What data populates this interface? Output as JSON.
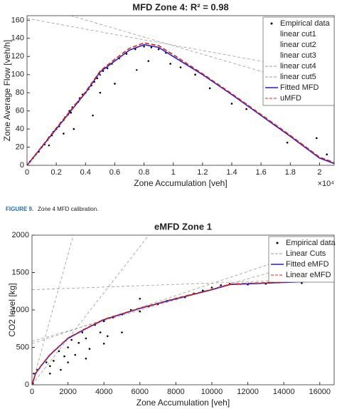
{
  "caption_label": "FIGURE 9.",
  "caption": "Zone 4 MFD calibration.",
  "chart_data": [
    {
      "type": "line",
      "title": "MFD Zone 4: R² = 0.98",
      "x_label": "Zone Accumulation [veh]",
      "y_label": "Zone Average Flow [veh/h]",
      "x_multiplier": "×10⁴",
      "xlim": [
        0,
        21000
      ],
      "ylim": [
        0,
        165
      ],
      "xticks": [
        0,
        {
          "value": 2000,
          "label": "0.2"
        },
        {
          "value": 4000,
          "label": "0.4"
        },
        {
          "value": 6000,
          "label": "0.6"
        },
        {
          "value": 8000,
          "label": "0.8"
        },
        {
          "value": 10000,
          "label": "1"
        },
        {
          "value": 12000,
          "label": "1.2"
        },
        {
          "value": 14000,
          "label": "1.4"
        },
        {
          "value": 16000,
          "label": "1.6"
        },
        {
          "value": 18000,
          "label": "1.8"
        },
        {
          "value": 20000,
          "label": "2"
        }
      ],
      "yticks": [
        0,
        20,
        40,
        60,
        80,
        100,
        120,
        140,
        160
      ],
      "grid": false,
      "legend": "top-right",
      "series": [
        {
          "name": "Empirical data",
          "style": "dots",
          "color": "#000000",
          "x": [
            200,
            400,
            600,
            800,
            1000,
            1200,
            1400,
            1500,
            1700,
            1800,
            2000,
            2200,
            2300,
            2500,
            2600,
            2800,
            2900,
            3000,
            3100,
            3300,
            3500,
            3600,
            3800,
            4000,
            4200,
            4400,
            4600,
            4800,
            5000,
            5200,
            5500,
            5800,
            6300,
            6800,
            7400,
            8000,
            8500,
            9000,
            9500,
            3200,
            4500,
            5000,
            6000,
            7500,
            8300,
            9800,
            10500,
            11500,
            12500,
            14000,
            15000,
            17800,
            19800,
            20500,
            1500,
            2500
          ],
          "values": [
            4,
            8,
            12,
            15,
            20,
            23,
            28,
            31,
            33,
            37,
            40,
            43,
            47,
            50,
            53,
            56,
            60,
            58,
            64,
            67,
            70,
            74,
            78,
            80,
            84,
            88,
            92,
            96,
            100,
            104,
            107,
            112,
            118,
            123,
            128,
            131,
            130,
            128,
            124,
            40,
            55,
            80,
            90,
            105,
            115,
            112,
            108,
            100,
            85,
            68,
            62,
            25,
            30,
            12,
            22,
            35
          ]
        },
        {
          "name": "linear cut1",
          "style": "dashed",
          "color": "#ffffff",
          "x": [
            0,
            7500
          ],
          "values": [
            0,
            165
          ]
        },
        {
          "name": "linear cut2",
          "style": "dashed",
          "color": "#ffffff",
          "x": [
            0,
            21000
          ],
          "values": [
            63,
            178
          ]
        },
        {
          "name": "linear cut3",
          "style": "dashed",
          "color": "#ffffff",
          "x": [
            5000,
            10500
          ],
          "values": [
            100,
            165
          ]
        },
        {
          "name": "linear cut4",
          "style": "dashed",
          "color": "#999999",
          "x": [
            0,
            21000
          ],
          "values": [
            162,
            100
          ]
        },
        {
          "name": "linear cut5",
          "style": "dashed",
          "color": "#999999",
          "x": [
            3000,
            21000
          ],
          "values": [
            165,
            80
          ]
        },
        {
          "name": "Fitted MFD",
          "style": "solid",
          "color": "#1f1fd6",
          "x": [
            0,
            2000,
            4000,
            5000,
            6000,
            7000,
            8000,
            9000,
            10000,
            12000,
            14000,
            16000,
            18000,
            20000,
            21000
          ],
          "values": [
            0,
            40,
            80,
            103,
            115,
            127,
            133,
            130,
            120,
            100,
            78,
            55,
            32,
            8,
            2
          ]
        },
        {
          "name": "uMFD",
          "style": "dashed",
          "color": "#e02020",
          "x": [
            0,
            2000,
            4000,
            5000,
            6000,
            7000,
            8000,
            9000,
            10000,
            12000,
            14000,
            16000,
            18000,
            20000,
            21000
          ],
          "values": [
            0,
            41,
            81,
            104,
            117,
            129,
            135,
            132,
            122,
            101,
            79,
            56,
            33,
            9,
            3
          ]
        }
      ]
    },
    {
      "type": "line",
      "title": "eMFD Zone 1",
      "x_label": "Zone Accumulation [veh]",
      "y_label": "CO2 level [kg]",
      "xlim": [
        0,
        16800
      ],
      "ylim": [
        0,
        2000
      ],
      "xticks": [
        0,
        2000,
        4000,
        6000,
        8000,
        10000,
        12000,
        14000,
        16000
      ],
      "yticks": [
        0,
        500,
        1000,
        1500,
        2000
      ],
      "grid": false,
      "legend": "top-right",
      "series": [
        {
          "name": "Empirical data",
          "style": "dots",
          "color": "#000000",
          "x": [
            50,
            100,
            300,
            800,
            1000,
            1200,
            1500,
            1600,
            1800,
            2000,
            2200,
            2400,
            2600,
            2800,
            3000,
            3200,
            3500,
            3800,
            4000,
            4200,
            4500,
            5000,
            5500,
            6000,
            6500,
            7000,
            7500,
            8000,
            8500,
            9000,
            9500,
            10000,
            10500,
            11000,
            12000,
            13000,
            15000,
            16500,
            1000,
            2000,
            3000,
            4000,
            5000,
            6000
          ],
          "values": [
            20,
            150,
            200,
            300,
            250,
            320,
            450,
            200,
            380,
            500,
            600,
            400,
            560,
            700,
            620,
            480,
            800,
            700,
            850,
            650,
            900,
            940,
            1000,
            980,
            1050,
            1080,
            1120,
            1150,
            1170,
            1220,
            1260,
            1300,
            1330,
            1350,
            1340,
            1350,
            1360,
            1420,
            150,
            300,
            350,
            550,
            700,
            1150
          ]
        },
        {
          "name": "Linear Cuts",
          "style": "dashed",
          "color": "#999999",
          "x": [
            0,
            2300,
            null,
            0,
            6500,
            null,
            0,
            16800,
            null,
            0,
            16800,
            null,
            0,
            16800
          ],
          "values": [
            0,
            2000,
            null,
            0,
            2000,
            null,
            550,
            1900,
            null,
            580,
            1750,
            null,
            1270,
            1420
          ]
        },
        {
          "name": "Fitted eMFD",
          "style": "solid",
          "color": "#1f1fd6",
          "x": [
            0,
            200,
            500,
            1000,
            2000,
            3000,
            4000,
            6000,
            8000,
            10000,
            11000,
            12000,
            16500
          ],
          "values": [
            0,
            150,
            250,
            400,
            620,
            750,
            870,
            1020,
            1150,
            1270,
            1340,
            1350,
            1390
          ]
        },
        {
          "name": "Linear eMFD",
          "style": "dashed",
          "color": "#e02020",
          "x": [
            0,
            200,
            500,
            1000,
            2000,
            3000,
            4000,
            6000,
            8000,
            10000,
            11000,
            12000,
            16500
          ],
          "values": [
            0,
            155,
            255,
            405,
            625,
            755,
            875,
            1025,
            1155,
            1275,
            1345,
            1355,
            1395
          ]
        }
      ]
    }
  ]
}
